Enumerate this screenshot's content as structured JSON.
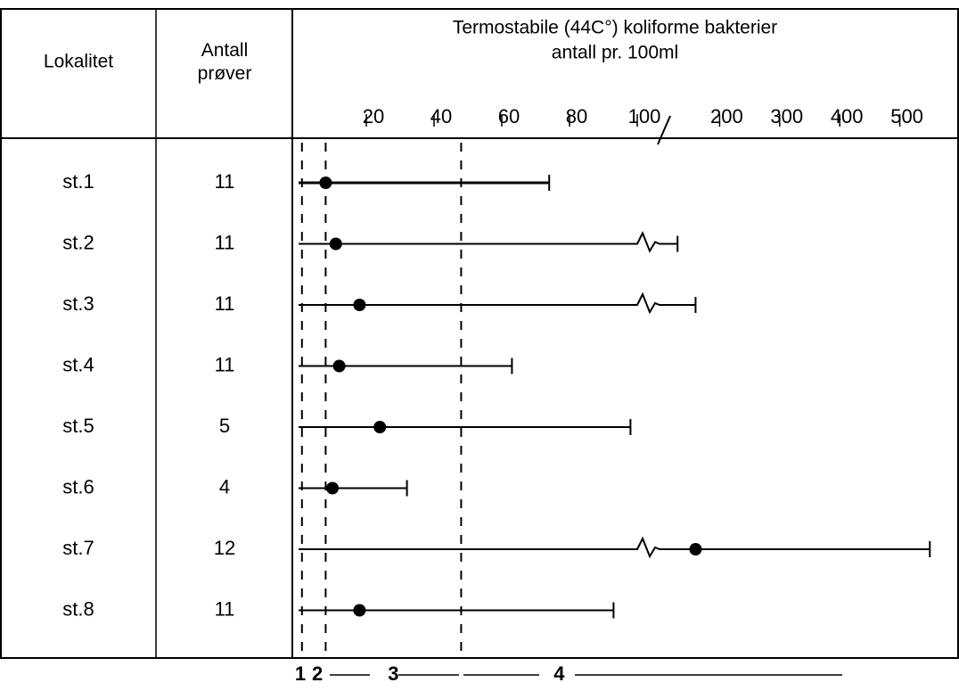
{
  "table": {
    "headers": [
      "Lokalitet",
      "Antall prøver"
    ]
  },
  "chart_data": {
    "type": "range",
    "title": "Termostabile (44C°) koliforme bakterier",
    "subtitle": "antall pr. 100ml",
    "categories": [
      "st.1",
      "st.2",
      "st.3",
      "st.4",
      "st.5",
      "st.6",
      "st.7",
      "st.8"
    ],
    "counts": [
      11,
      11,
      11,
      11,
      5,
      4,
      12,
      11
    ],
    "min": [
      0,
      0,
      0,
      0,
      0,
      0,
      0,
      0
    ],
    "median": [
      8,
      11,
      18,
      12,
      24,
      10,
      160,
      18
    ],
    "max": [
      74,
      130,
      160,
      63,
      98,
      32,
      550,
      93
    ],
    "xlim": [
      0,
      560
    ],
    "xticks": [
      20,
      40,
      60,
      80,
      100,
      200,
      300,
      400,
      500
    ],
    "axis_break": 100,
    "thresholds": [
      1,
      8,
      48
    ],
    "zone_labels": [
      "1",
      "2",
      "3",
      "4"
    ],
    "color": "#000000"
  }
}
